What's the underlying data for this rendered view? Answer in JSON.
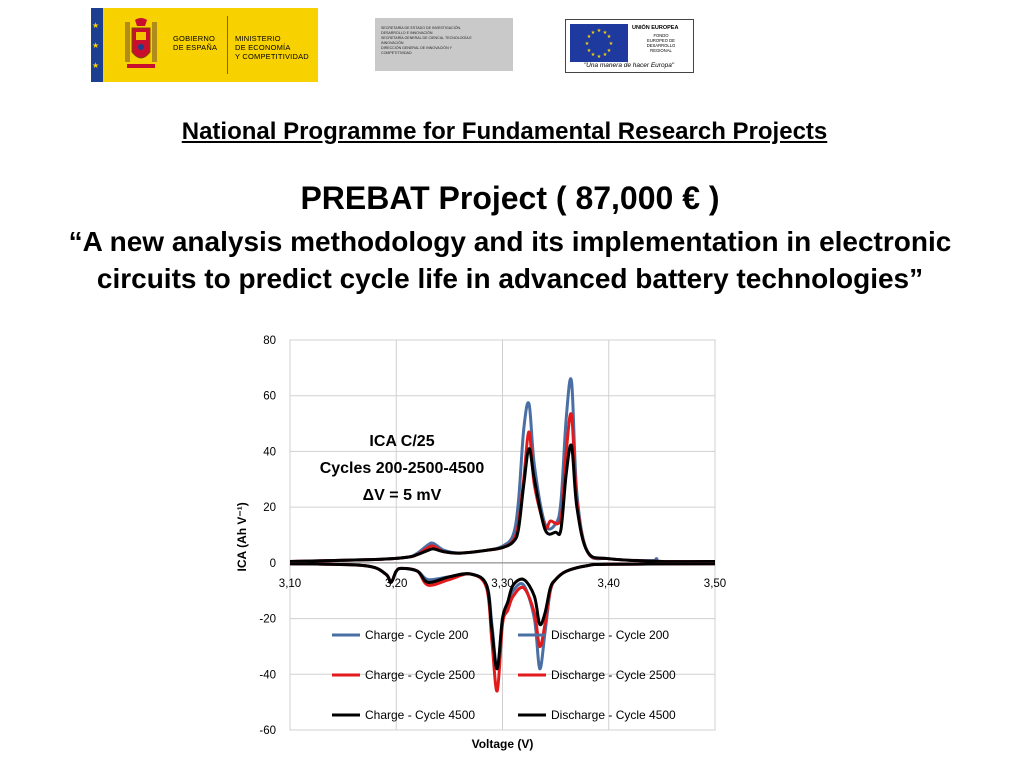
{
  "logos": {
    "gobierno": {
      "line1": "GOBIERNO",
      "line2": "DE ESPAÑA",
      "m1": "MINISTERIO",
      "m2": "DE ECONOMÍA",
      "m3": "Y COMPETITIVIDAD"
    },
    "secretaria": "SECRETARÍA DE ESTADO DE INVESTIGACIÓN,\nDESARROLLO E INNOVACIÓN\nSECRETARÍA GENERAL DE CIENCIA, TECNOLOGÍA E\nINNOVACIÓN\nDIRECCIÓN GENERAL DE INNOVACIÓN Y\nCOMPETITIVIDAD",
    "eu": {
      "title": "UNIÓN EUROPEA",
      "sub": "FONDO\nEUROPEO DE\nDESARROLLO\nREGIONAL",
      "motto": "\"Una manera de hacer Europa\""
    }
  },
  "heading": {
    "programme": "National Programme for Fundamental Research Projects",
    "project": "PREBAT Project ( 87,000 € )",
    "quote_line1": "“A new analysis methodology and its implementation in electronic",
    "quote_line2": "circuits to predict cycle life in advanced battery technologies”"
  },
  "chart_data": {
    "type": "line",
    "xlabel": "Voltage (V)",
    "ylabel": "ICA (Ah V⁻¹)",
    "xlim": [
      3.1,
      3.5
    ],
    "ylim": [
      -60,
      80
    ],
    "xticks": [
      "3,10",
      "3,20",
      "3,30",
      "3,40",
      "3,50"
    ],
    "xtick_values": [
      3.1,
      3.2,
      3.3,
      3.4,
      3.5
    ],
    "yticks": [
      80,
      60,
      40,
      20,
      0,
      -20,
      -40,
      -60
    ],
    "grid": true,
    "annotation": [
      "ICA C/25",
      "Cycles 200-2500-4500",
      "ΔV = 5 mV"
    ],
    "colors": {
      "cycle200": "#4a6fa5",
      "cycle2500": "#e31a1c",
      "cycle4500": "#000000"
    },
    "legend": [
      {
        "label": "Charge - Cycle 200",
        "color": "#4a6fa5"
      },
      {
        "label": "Discharge - Cycle 200",
        "color": "#4a6fa5"
      },
      {
        "label": "Charge - Cycle 2500",
        "color": "#e31a1c"
      },
      {
        "label": "Discharge - Cycle 2500",
        "color": "#e31a1c"
      },
      {
        "label": "Charge - Cycle 4500",
        "color": "#000000"
      },
      {
        "label": "Discharge - Cycle 4500",
        "color": "#000000"
      }
    ],
    "series": [
      {
        "name": "Charge - Cycle 200",
        "color": "#4a6fa5",
        "x": [
          3.1,
          3.18,
          3.21,
          3.22,
          3.23,
          3.235,
          3.245,
          3.26,
          3.285,
          3.3,
          3.31,
          3.315,
          3.32,
          3.325,
          3.33,
          3.34,
          3.35,
          3.355,
          3.36,
          3.365,
          3.37,
          3.38,
          3.4,
          3.44,
          3.445,
          3.45,
          3.5
        ],
        "y": [
          0.5,
          1.2,
          2,
          3.5,
          6.5,
          7,
          4.5,
          3.5,
          4.5,
          6,
          10,
          22,
          48,
          57,
          35,
          14,
          14,
          22,
          52,
          65,
          25,
          4,
          1.5,
          0.8,
          1.5,
          0.5,
          0.5
        ]
      },
      {
        "name": "Charge - Cycle 2500",
        "color": "#e31a1c",
        "x": [
          3.1,
          3.18,
          3.21,
          3.22,
          3.23,
          3.235,
          3.245,
          3.26,
          3.285,
          3.3,
          3.31,
          3.315,
          3.32,
          3.325,
          3.33,
          3.34,
          3.345,
          3.355,
          3.36,
          3.365,
          3.37,
          3.38,
          3.4,
          3.45,
          3.5
        ],
        "y": [
          0.5,
          1.2,
          2,
          3,
          5.5,
          6,
          4,
          3.5,
          4.5,
          5.5,
          8,
          14,
          30,
          47,
          28,
          13,
          15,
          16,
          40,
          53,
          22,
          4,
          1.5,
          0.5,
          0.5
        ]
      },
      {
        "name": "Charge - Cycle 4500",
        "color": "#000000",
        "x": [
          3.1,
          3.18,
          3.21,
          3.22,
          3.23,
          3.235,
          3.245,
          3.26,
          3.285,
          3.3,
          3.31,
          3.315,
          3.32,
          3.325,
          3.33,
          3.34,
          3.35,
          3.355,
          3.36,
          3.365,
          3.37,
          3.38,
          3.4,
          3.45,
          3.5
        ],
        "y": [
          0.5,
          1.2,
          2,
          3,
          4.5,
          5,
          4,
          3.5,
          4.5,
          5.5,
          7.5,
          12,
          28,
          41,
          30,
          12,
          11,
          12,
          32,
          42,
          20,
          4,
          1.5,
          0.5,
          0.5
        ]
      },
      {
        "name": "Discharge - Cycle 200",
        "color": "#4a6fa5",
        "x": [
          3.1,
          3.17,
          3.19,
          3.195,
          3.2,
          3.205,
          3.22,
          3.23,
          3.25,
          3.27,
          3.285,
          3.29,
          3.295,
          3.3,
          3.305,
          3.31,
          3.32,
          3.33,
          3.335,
          3.34,
          3.345,
          3.35,
          3.36,
          3.38,
          3.4,
          3.5
        ],
        "y": [
          -0.3,
          -1,
          -4,
          -7,
          -3,
          -2,
          -3,
          -6,
          -5,
          -4,
          -8,
          -22,
          -38,
          -20,
          -15,
          -10,
          -8,
          -20,
          -38,
          -25,
          -10,
          -6,
          -3,
          -1,
          -0.5,
          -0.3
        ]
      },
      {
        "name": "Discharge - Cycle 2500",
        "color": "#e31a1c",
        "x": [
          3.1,
          3.17,
          3.19,
          3.195,
          3.2,
          3.205,
          3.22,
          3.23,
          3.25,
          3.27,
          3.285,
          3.29,
          3.295,
          3.3,
          3.305,
          3.31,
          3.32,
          3.33,
          3.335,
          3.34,
          3.345,
          3.35,
          3.36,
          3.38,
          3.4,
          3.5
        ],
        "y": [
          -0.3,
          -1,
          -4,
          -7,
          -3,
          -2,
          -3,
          -8,
          -6,
          -4,
          -9,
          -28,
          -46,
          -22,
          -17,
          -12,
          -9,
          -18,
          -30,
          -22,
          -10,
          -6,
          -3,
          -1,
          -0.5,
          -0.3
        ]
      },
      {
        "name": "Discharge - Cycle 4500",
        "color": "#000000",
        "x": [
          3.1,
          3.17,
          3.19,
          3.195,
          3.2,
          3.205,
          3.22,
          3.23,
          3.25,
          3.27,
          3.285,
          3.29,
          3.295,
          3.3,
          3.305,
          3.31,
          3.32,
          3.33,
          3.335,
          3.34,
          3.345,
          3.35,
          3.36,
          3.38,
          3.4,
          3.5
        ],
        "y": [
          -0.3,
          -1,
          -4,
          -7,
          -3,
          -2,
          -3,
          -7,
          -5,
          -4,
          -8,
          -24,
          -38,
          -20,
          -14,
          -8,
          -6,
          -12,
          -22,
          -18,
          -9,
          -6,
          -3,
          -1,
          -0.5,
          -0.3
        ]
      }
    ]
  }
}
